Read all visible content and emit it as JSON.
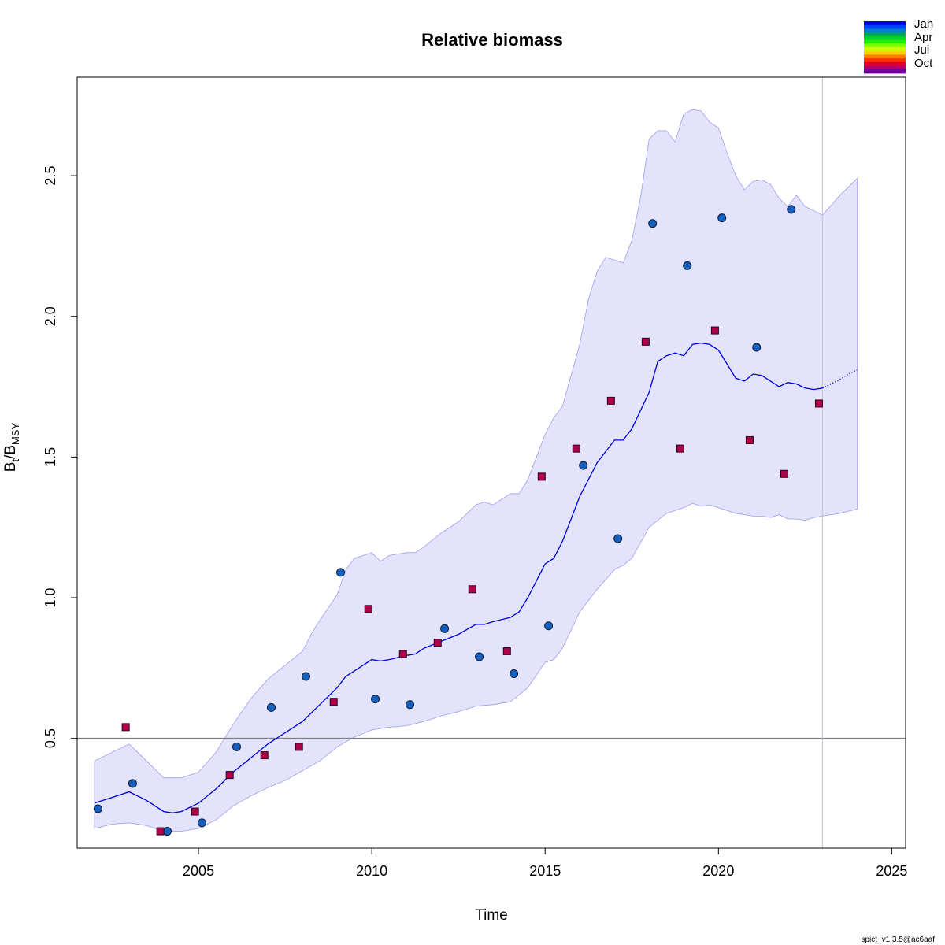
{
  "chart_data": {
    "type": "line",
    "title": "Relative biomass",
    "xlabel": "Time",
    "ylabel": {
      "base": "B",
      "sub1": "t",
      "sep": "/B",
      "sub2": "MSY"
    },
    "xlim": [
      2001.5,
      2025.4
    ],
    "ylim": [
      0.11,
      2.85
    ],
    "x_ticks": [
      2005,
      2010,
      2015,
      2020,
      2025
    ],
    "x_tick_labels": [
      "2005",
      "2010",
      "2015",
      "2020",
      "2025"
    ],
    "y_ticks": [
      0.5,
      1.0,
      1.5,
      2.0,
      2.5
    ],
    "y_tick_labels": [
      "0.5",
      "1.0",
      "1.5",
      "2.0",
      "2.5"
    ],
    "grid": false,
    "reference_line_y": 0.5,
    "vertical_line_x": 2023,
    "estimate": {
      "x": [
        2002,
        2002.5,
        2003,
        2003.5,
        2004,
        2004.25,
        2004.5,
        2005,
        2005.5,
        2006,
        2006.5,
        2007,
        2007.5,
        2008,
        2008.25,
        2008.5,
        2009,
        2009.25,
        2009.5,
        2010,
        2010.25,
        2010.5,
        2011,
        2011.25,
        2011.5,
        2012,
        2012.5,
        2013,
        2013.25,
        2013.5,
        2014,
        2014.25,
        2014.5,
        2015,
        2015.25,
        2015.5,
        2016,
        2016.5,
        2017,
        2017.25,
        2017.5,
        2018,
        2018.25,
        2018.5,
        2018.75,
        2019,
        2019.25,
        2019.5,
        2019.75,
        2020,
        2020.25,
        2020.5,
        2020.75,
        2021,
        2021.25,
        2021.5,
        2021.75,
        2022,
        2022.25,
        2022.5,
        2022.75,
        2023
      ],
      "y": [
        0.27,
        0.29,
        0.31,
        0.28,
        0.24,
        0.235,
        0.24,
        0.27,
        0.32,
        0.38,
        0.43,
        0.48,
        0.52,
        0.56,
        0.59,
        0.62,
        0.68,
        0.72,
        0.74,
        0.78,
        0.775,
        0.78,
        0.795,
        0.8,
        0.82,
        0.845,
        0.87,
        0.905,
        0.905,
        0.915,
        0.93,
        0.95,
        1.0,
        1.12,
        1.14,
        1.2,
        1.36,
        1.48,
        1.56,
        1.56,
        1.6,
        1.73,
        1.84,
        1.86,
        1.87,
        1.86,
        1.9,
        1.905,
        1.9,
        1.88,
        1.83,
        1.78,
        1.77,
        1.795,
        1.79,
        1.77,
        1.75,
        1.765,
        1.76,
        1.745,
        1.74,
        1.745
      ]
    },
    "forecast": {
      "x": [
        2023,
        2023.25,
        2023.5,
        2023.75,
        2024
      ],
      "y": [
        1.745,
        1.76,
        1.775,
        1.795,
        1.81
      ]
    },
    "ci_upper": {
      "x": [
        2002,
        2002.5,
        2003,
        2003.5,
        2004,
        2004.5,
        2005,
        2005.5,
        2006,
        2006.5,
        2007,
        2007.5,
        2008,
        2008.25,
        2008.5,
        2009,
        2009.25,
        2009.5,
        2010,
        2010.25,
        2010.5,
        2011,
        2011.25,
        2011.5,
        2012,
        2012.5,
        2013,
        2013.25,
        2013.5,
        2014,
        2014.25,
        2014.5,
        2015,
        2015.25,
        2015.5,
        2016,
        2016.25,
        2016.5,
        2016.75,
        2017,
        2017.25,
        2017.5,
        2017.75,
        2018,
        2018.25,
        2018.5,
        2018.75,
        2019,
        2019.25,
        2019.5,
        2019.75,
        2020,
        2020.25,
        2020.5,
        2020.75,
        2021,
        2021.25,
        2021.5,
        2021.75,
        2022,
        2022.25,
        2022.5,
        2022.75,
        2023,
        2023.25,
        2023.5,
        2023.75,
        2024
      ],
      "y": [
        0.42,
        0.45,
        0.48,
        0.42,
        0.36,
        0.36,
        0.38,
        0.45,
        0.55,
        0.64,
        0.71,
        0.76,
        0.81,
        0.87,
        0.92,
        1.01,
        1.1,
        1.14,
        1.16,
        1.13,
        1.15,
        1.16,
        1.16,
        1.18,
        1.23,
        1.27,
        1.33,
        1.34,
        1.33,
        1.37,
        1.37,
        1.42,
        1.58,
        1.64,
        1.68,
        1.9,
        2.06,
        2.16,
        2.21,
        2.2,
        2.19,
        2.27,
        2.42,
        2.63,
        2.66,
        2.66,
        2.62,
        2.72,
        2.735,
        2.73,
        2.69,
        2.67,
        2.58,
        2.5,
        2.45,
        2.48,
        2.485,
        2.47,
        2.42,
        2.39,
        2.43,
        2.39,
        2.375,
        2.36,
        2.395,
        2.43,
        2.46,
        2.49
      ]
    },
    "ci_lower": {
      "x": [
        2002,
        2002.5,
        2003,
        2003.5,
        2004,
        2004.5,
        2005,
        2005.5,
        2006,
        2006.5,
        2007,
        2007.5,
        2008,
        2008.5,
        2009,
        2009.5,
        2010,
        2010.5,
        2011,
        2011.5,
        2012,
        2012.5,
        2013,
        2013.5,
        2014,
        2014.5,
        2015,
        2015.25,
        2015.5,
        2016,
        2016.5,
        2017,
        2017.25,
        2017.5,
        2018,
        2018.5,
        2019,
        2019.25,
        2019.5,
        2019.75,
        2020,
        2020.5,
        2021,
        2021.25,
        2021.5,
        2021.75,
        2022,
        2022.25,
        2022.5,
        2022.75,
        2023,
        2023.5,
        2024
      ],
      "y": [
        0.18,
        0.195,
        0.2,
        0.19,
        0.17,
        0.17,
        0.18,
        0.21,
        0.26,
        0.295,
        0.325,
        0.35,
        0.385,
        0.42,
        0.47,
        0.505,
        0.53,
        0.54,
        0.545,
        0.56,
        0.58,
        0.595,
        0.615,
        0.62,
        0.63,
        0.68,
        0.77,
        0.78,
        0.82,
        0.95,
        1.03,
        1.1,
        1.115,
        1.14,
        1.25,
        1.3,
        1.32,
        1.335,
        1.325,
        1.33,
        1.32,
        1.3,
        1.29,
        1.29,
        1.285,
        1.295,
        1.28,
        1.28,
        1.275,
        1.285,
        1.29,
        1.3,
        1.315
      ]
    },
    "series": [
      {
        "marker": "circle",
        "color": "#1560bd",
        "x": [
          2002.1,
          2003.1,
          2004.1,
          2005.1,
          2006.1,
          2007.1,
          2008.1,
          2009.1,
          2010.1,
          2011.1,
          2012.1,
          2013.1,
          2014.1,
          2015.1,
          2016.1,
          2017.1,
          2018.1,
          2019.1,
          2020.1,
          2021.1,
          2022.1
        ],
        "y": [
          0.25,
          0.34,
          0.17,
          0.2,
          0.47,
          0.61,
          0.72,
          1.09,
          0.64,
          0.62,
          0.89,
          0.79,
          0.73,
          0.9,
          1.47,
          1.21,
          2.33,
          2.18,
          2.35,
          1.89,
          2.38
        ]
      },
      {
        "marker": "square",
        "color": "#b0004a",
        "x": [
          2002.9,
          2003.9,
          2004.9,
          2005.9,
          2006.9,
          2007.9,
          2008.9,
          2009.9,
          2010.9,
          2011.9,
          2012.9,
          2013.9,
          2014.9,
          2015.9,
          2016.9,
          2017.9,
          2018.9,
          2019.9,
          2020.9,
          2021.9,
          2022.9
        ],
        "y": [
          0.54,
          0.17,
          0.24,
          0.37,
          0.44,
          0.47,
          0.63,
          0.96,
          0.8,
          0.84,
          1.03,
          0.81,
          1.43,
          1.53,
          1.7,
          1.91,
          1.53,
          1.95,
          1.56,
          1.44,
          1.69
        ]
      }
    ],
    "colors": {
      "estimate_line": "#0000dd",
      "ci_fill": "#e3e3fb",
      "ci_border": "#9d9df0",
      "reference_line": "#808080",
      "vertical_line": "#c8c8d8"
    },
    "legend": {
      "placement": "top-right",
      "labels": [
        "Jan",
        "Apr",
        "Jul",
        "Oct"
      ],
      "colors": [
        "#0000e0",
        "#0040ff",
        "#0080c0",
        "#00a060",
        "#00d030",
        "#20f000",
        "#80ff00",
        "#ccff00",
        "#ffd000",
        "#ff8000",
        "#ff3000",
        "#e00030",
        "#b00070",
        "#7000a0"
      ]
    }
  },
  "footer": {
    "version": "spict_v1.3.5@ac6aaf"
  }
}
